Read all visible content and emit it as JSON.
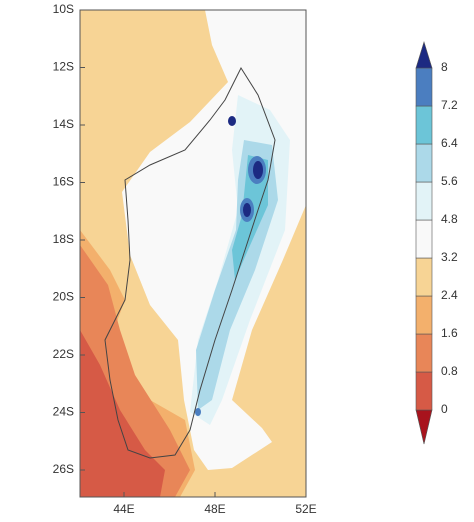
{
  "map": {
    "lat_ticks": [
      "10S",
      "12S",
      "14S",
      "16S",
      "18S",
      "20S",
      "22S",
      "24S",
      "26S"
    ],
    "lon_ticks": [
      "44E",
      "48E",
      "52E"
    ],
    "colorbar": {
      "levels": [
        0,
        0.8,
        1.6,
        2.4,
        3.2,
        4.8,
        5.6,
        6.4,
        7.2,
        8
      ],
      "colors": [
        "#a8131d",
        "#d65a46",
        "#e88658",
        "#f3b06c",
        "#f7d495",
        "#f9f9f9",
        "#e2f3f7",
        "#acd9e9",
        "#6cc5d8",
        "#4b7ec0",
        "#1c2a82"
      ]
    }
  }
}
